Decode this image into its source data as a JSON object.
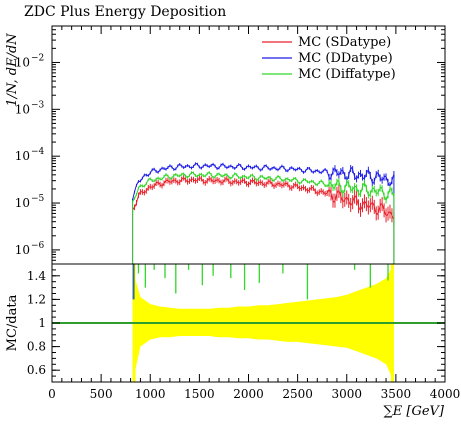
{
  "chart_data": [
    {
      "type": "line",
      "title": "ZDC Plus Energy Deposition",
      "ylabel": "1/N, dE/dN",
      "xlabel": "",
      "yscale": "log",
      "ylim": [
        5e-07,
        0.06
      ],
      "xlim": [
        0,
        4000
      ],
      "yticks": [
        {
          "value": 1e-06,
          "mant": "10",
          "exp": "−6"
        },
        {
          "value": 1e-05,
          "mant": "10",
          "exp": "−5"
        },
        {
          "value": 0.0001,
          "mant": "10",
          "exp": "−4"
        },
        {
          "value": 0.001,
          "mant": "10",
          "exp": "−3"
        },
        {
          "value": 0.01,
          "mant": "10",
          "exp": "−2"
        }
      ],
      "legend_position": "top-right",
      "x": [
        820,
        880,
        940,
        1000,
        1100,
        1200,
        1300,
        1400,
        1500,
        1600,
        1700,
        1800,
        1900,
        2000,
        2100,
        2200,
        2300,
        2400,
        2500,
        2600,
        2700,
        2800,
        2900,
        3000,
        3100,
        3200,
        3300,
        3400,
        3480
      ],
      "series": [
        {
          "name": "MC (SDatype)",
          "color": "#e8202a",
          "values": [
            7e-06,
            1.4e-05,
            1.8e-05,
            2.2e-05,
            2.6e-05,
            2.9e-05,
            3e-05,
            3.1e-05,
            3.1e-05,
            3e-05,
            3e-05,
            2.9e-05,
            2.8e-05,
            2.8e-05,
            2.7e-05,
            2.6e-05,
            2.5e-05,
            2.4e-05,
            2.2e-05,
            2e-05,
            1.8e-05,
            1.6e-05,
            1.4e-05,
            1.2e-05,
            1e-05,
            9e-06,
            8e-06,
            6.5e-06,
            5.5e-06
          ]
        },
        {
          "name": "MC (DDatype)",
          "color": "#1f1fe6",
          "values": [
            1.3e-05,
            2.8e-05,
            3.8e-05,
            4.5e-05,
            5.2e-05,
            5.7e-05,
            6e-05,
            6.1e-05,
            6.2e-05,
            6.2e-05,
            6.1e-05,
            6e-05,
            5.9e-05,
            5.8e-05,
            5.7e-05,
            5.6e-05,
            5.5e-05,
            5.4e-05,
            5.2e-05,
            5e-05,
            4.8e-05,
            4.6e-05,
            4.4e-05,
            4.2e-05,
            4e-05,
            3.8e-05,
            3.6e-05,
            3.2e-05,
            3e-05
          ]
        },
        {
          "name": "MC (Diffatype)",
          "color": "#33d62a",
          "values": [
            1e-05,
            2e-05,
            2.6e-05,
            3e-05,
            3.4e-05,
            3.7e-05,
            3.9e-05,
            4e-05,
            4e-05,
            4e-05,
            3.9e-05,
            3.8e-05,
            3.7e-05,
            3.6e-05,
            3.5e-05,
            3.4e-05,
            3.3e-05,
            3.2e-05,
            3e-05,
            2.9e-05,
            2.7e-05,
            2.5e-05,
            2.3e-05,
            2.2e-05,
            2e-05,
            1.9e-05,
            1.8e-05,
            1.6e-05,
            1.5e-05
          ]
        }
      ]
    },
    {
      "type": "area",
      "ylabel": "MC/data",
      "xlabel": "∑E [GeV]",
      "ylim": [
        0.5,
        1.5
      ],
      "xlim": [
        0,
        4000
      ],
      "xticks": [
        0,
        500,
        1000,
        1500,
        2000,
        2500,
        3000,
        3500,
        4000
      ],
      "yticks": [
        0.6,
        0.8,
        1,
        1.2,
        1.4
      ],
      "reference_line": 1,
      "reference_color": "#2e9e2e",
      "band_color": "#ffff00",
      "x": [
        820,
        900,
        1000,
        1100,
        1200,
        1300,
        1400,
        1500,
        1600,
        1700,
        1800,
        1900,
        2000,
        2100,
        2200,
        2300,
        2400,
        2500,
        2600,
        2700,
        2800,
        2900,
        3000,
        3100,
        3200,
        3300,
        3400,
        3480
      ],
      "band_upper": [
        1.45,
        1.22,
        1.16,
        1.14,
        1.13,
        1.12,
        1.12,
        1.12,
        1.12,
        1.13,
        1.13,
        1.14,
        1.14,
        1.15,
        1.15,
        1.16,
        1.17,
        1.18,
        1.19,
        1.2,
        1.21,
        1.22,
        1.24,
        1.27,
        1.3,
        1.33,
        1.38,
        1.5
      ],
      "band_lower": [
        0.5,
        0.8,
        0.86,
        0.88,
        0.88,
        0.89,
        0.89,
        0.89,
        0.89,
        0.88,
        0.88,
        0.87,
        0.87,
        0.86,
        0.86,
        0.85,
        0.84,
        0.84,
        0.83,
        0.82,
        0.81,
        0.8,
        0.79,
        0.76,
        0.73,
        0.7,
        0.65,
        0.5
      ],
      "series": [
        {
          "name": "MC (Diffatype)",
          "color": "#33d62a",
          "points": [
            [
              880,
              1.42
            ],
            [
              950,
              1.3
            ],
            [
              1040,
              1.45
            ],
            [
              1150,
              1.38
            ],
            [
              1260,
              1.25
            ],
            [
              1390,
              1.45
            ],
            [
              1530,
              1.32
            ],
            [
              1640,
              1.4
            ],
            [
              1820,
              1.38
            ],
            [
              1960,
              1.28
            ],
            [
              2110,
              1.34
            ],
            [
              2350,
              1.42
            ],
            [
              2600,
              1.2
            ],
            [
              3080,
              1.45
            ],
            [
              3240,
              1.3
            ],
            [
              3420,
              1.36
            ]
          ]
        }
      ]
    }
  ]
}
